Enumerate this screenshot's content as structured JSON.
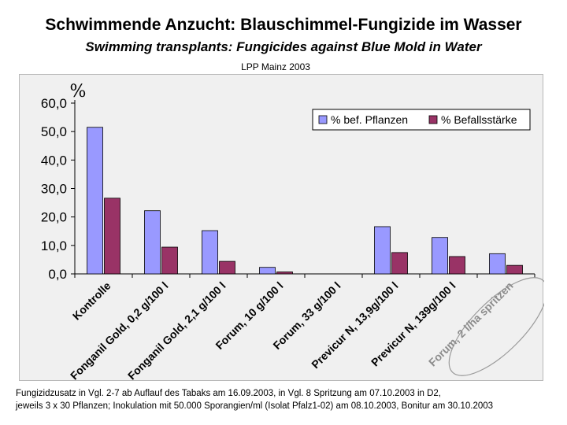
{
  "title": "Schwimmende Anzucht: Blauschimmel-Fungizide im Wasser",
  "subtitle": "Swimming transplants: Fungicides against Blue Mold in Water",
  "source": "LPP Mainz 2003",
  "footnote": {
    "line1": "Fungizidzusatz in Vgl. 2-7 ab Auflauf des Tabaks am 16.09.2003, in Vgl. 8 Spritzung am 07.10.2003 in D2,",
    "line2": "jeweils 3 x 30 Pflanzen; Inokulation mit 50.000 Sporangien/ml (Isolat Pfalz1-02) am 08.10.2003, Bonitur am 30.10.2003"
  },
  "chart_data": {
    "type": "bar",
    "ylabel": "%",
    "ylim": [
      0,
      60
    ],
    "yticks": [
      "0,0",
      "10,0",
      "20,0",
      "30,0",
      "40,0",
      "50,0",
      "60,0"
    ],
    "grid": false,
    "legend_position": "top-right",
    "categories": [
      "Kontrolle",
      "Fonganil Gold, 0,2 g/100 l",
      "Fonganil Gold, 2,1 g/100 l",
      "Forum, 10 g/100 l",
      "Forum, 33 g/100 l",
      "Previcur N, 13,9g/100 l",
      "Previcur N, 139g/100 l",
      "Forum, 2 l/ha spritzen"
    ],
    "series": [
      {
        "name": "% bef. Pflanzen",
        "color": "#9999ff",
        "values": [
          51.5,
          22.2,
          15.2,
          2.3,
          0,
          16.6,
          12.8,
          7.1
        ]
      },
      {
        "name": "% Befallsstärke",
        "color": "#993366",
        "values": [
          26.6,
          9.4,
          4.4,
          0.7,
          0,
          7.5,
          6.1,
          3.0
        ]
      }
    ]
  }
}
